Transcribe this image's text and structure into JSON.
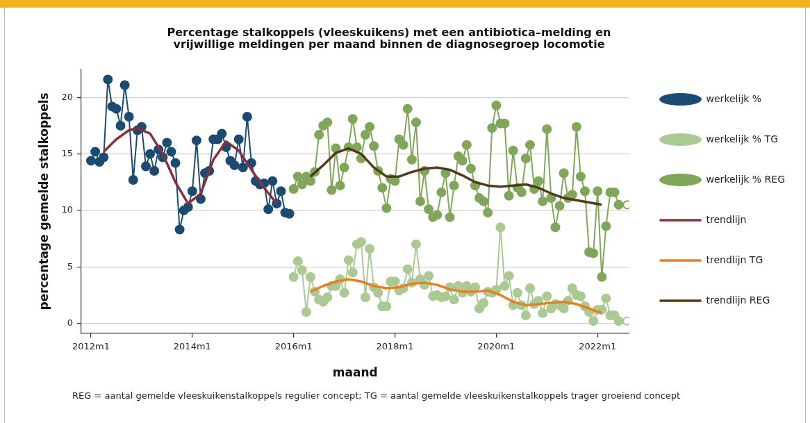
{
  "chart_data": {
    "type": "line",
    "title": "Percentage stalkoppels (vleeskuikens) met een antibiotica–melding en vrijwillige meldingen per maand binnen de diagnosegroep locomotie",
    "xlabel": "maand",
    "ylabel": "percentage gemelde stalkoppels",
    "annotations": [
      "REG = aantal gemelde vleeskuikenstalkoppels regulier concept; TG = aantal gemelde vleeskuikenstalkoppels trager groeiend concept"
    ],
    "xlim": [
      "2011-10-22",
      "2022-08-15"
    ],
    "xticks": [
      {
        "value": "2012-01",
        "label": "2012m1"
      },
      {
        "value": "2014-01",
        "label": "2014m1"
      },
      {
        "value": "2016-01",
        "label": "2016m1"
      },
      {
        "value": "2018-01",
        "label": "2018m1"
      },
      {
        "value": "2020-01",
        "label": "2020m1"
      },
      {
        "value": "2022-01",
        "label": "2022m1"
      }
    ],
    "ylim": [
      -0.9,
      22.5
    ],
    "yticks": [
      0,
      5,
      10,
      15,
      20
    ],
    "grid": "y",
    "legend": "right",
    "series": [
      {
        "name": "werkelijk %",
        "marker": "circle",
        "color": "#1b4a73",
        "x": [
          "2012-01",
          "2012-02",
          "2012-03",
          "2012-04",
          "2012-05",
          "2012-06",
          "2012-07",
          "2012-08",
          "2012-09",
          "2012-10",
          "2012-11",
          "2012-12",
          "2013-01",
          "2013-02",
          "2013-03",
          "2013-04",
          "2013-05",
          "2013-06",
          "2013-07",
          "2013-08",
          "2013-09",
          "2013-10",
          "2013-11",
          "2013-12",
          "2014-01",
          "2014-02",
          "2014-03",
          "2014-04",
          "2014-05",
          "2014-06",
          "2014-07",
          "2014-08",
          "2014-09",
          "2014-10",
          "2014-11",
          "2014-12",
          "2015-01",
          "2015-02",
          "2015-03",
          "2015-04",
          "2015-05",
          "2015-06",
          "2015-07",
          "2015-08",
          "2015-09",
          "2015-10",
          "2015-11",
          "2015-12"
        ],
        "values": [
          14.4,
          15.2,
          14.3,
          14.7,
          21.6,
          19.2,
          19.0,
          17.5,
          21.1,
          18.3,
          12.7,
          17.1,
          17.4,
          13.9,
          15.0,
          13.5,
          15.4,
          14.7,
          16.0,
          15.2,
          14.2,
          8.3,
          10.0,
          10.3,
          11.7,
          16.2,
          11.0,
          13.3,
          13.5,
          16.3,
          16.3,
          16.8,
          15.6,
          14.4,
          14.0,
          16.3,
          13.8,
          18.3,
          14.2,
          12.6,
          12.3,
          12.4,
          10.1,
          12.6,
          10.6,
          11.7,
          9.8,
          9.7
        ]
      },
      {
        "name": "werkelijk % TG",
        "marker": "circle",
        "color": "#abc993",
        "x": [
          "2016-01",
          "2016-02",
          "2016-03",
          "2016-04",
          "2016-05",
          "2016-06",
          "2016-07",
          "2016-08",
          "2016-09",
          "2016-10",
          "2016-11",
          "2016-12",
          "2017-01",
          "2017-02",
          "2017-03",
          "2017-04",
          "2017-05",
          "2017-06",
          "2017-07",
          "2017-08",
          "2017-09",
          "2017-10",
          "2017-11",
          "2017-12",
          "2018-01",
          "2018-02",
          "2018-03",
          "2018-04",
          "2018-05",
          "2018-06",
          "2018-07",
          "2018-08",
          "2018-09",
          "2018-10",
          "2018-11",
          "2018-12",
          "2019-01",
          "2019-02",
          "2019-03",
          "2019-04",
          "2019-05",
          "2019-06",
          "2019-07",
          "2019-08",
          "2019-09",
          "2019-10",
          "2019-11",
          "2019-12",
          "2020-01",
          "2020-02",
          "2020-03",
          "2020-04",
          "2020-05",
          "2020-06",
          "2020-07",
          "2020-08",
          "2020-09",
          "2020-10",
          "2020-11",
          "2020-12",
          "2021-01",
          "2021-02",
          "2021-03",
          "2021-04",
          "2021-05",
          "2021-06",
          "2021-07",
          "2021-08",
          "2021-09",
          "2021-10",
          "2021-11",
          "2021-12",
          "2022-01",
          "2022-02",
          "2022-03",
          "2022-04",
          "2022-05",
          "2022-06"
        ],
        "values": [
          4.1,
          5.5,
          4.7,
          1.0,
          4.1,
          2.8,
          2.1,
          1.9,
          2.3,
          3.3,
          3.3,
          3.9,
          2.7,
          5.6,
          4.5,
          7.0,
          7.2,
          2.3,
          6.6,
          3.2,
          2.7,
          1.5,
          1.5,
          3.7,
          3.7,
          2.9,
          3.1,
          4.8,
          3.6,
          7.0,
          3.9,
          3.4,
          4.2,
          2.4,
          2.5,
          2.3,
          2.4,
          3.2,
          2.1,
          3.3,
          2.7,
          3.3,
          2.8,
          3.2,
          1.3,
          1.8,
          2.8,
          2.7,
          3.0,
          8.5,
          3.3,
          4.2,
          1.6,
          2.7,
          1.6,
          0.7,
          3.1,
          1.7,
          2.0,
          0.9,
          2.4,
          1.3,
          1.7,
          1.6,
          1.3,
          2.0,
          3.1,
          2.5,
          2.4,
          1.5,
          1.0,
          0.2,
          1.2,
          1.2,
          2.2,
          0.7,
          0.7,
          0.2
        ]
      },
      {
        "name": "werkelijk % REG",
        "marker": "circle",
        "color": "#80a65a",
        "x": [
          "2016-01",
          "2016-02",
          "2016-03",
          "2016-04",
          "2016-05",
          "2016-06",
          "2016-07",
          "2016-08",
          "2016-09",
          "2016-10",
          "2016-11",
          "2016-12",
          "2017-01",
          "2017-02",
          "2017-03",
          "2017-04",
          "2017-05",
          "2017-06",
          "2017-07",
          "2017-08",
          "2017-09",
          "2017-10",
          "2017-11",
          "2017-12",
          "2018-01",
          "2018-02",
          "2018-03",
          "2018-04",
          "2018-05",
          "2018-06",
          "2018-07",
          "2018-08",
          "2018-09",
          "2018-10",
          "2018-11",
          "2018-12",
          "2019-01",
          "2019-02",
          "2019-03",
          "2019-04",
          "2019-05",
          "2019-06",
          "2019-07",
          "2019-08",
          "2019-09",
          "2019-10",
          "2019-11",
          "2019-12",
          "2020-01",
          "2020-02",
          "2020-03",
          "2020-04",
          "2020-05",
          "2020-06",
          "2020-07",
          "2020-08",
          "2020-09",
          "2020-10",
          "2020-11",
          "2020-12",
          "2021-01",
          "2021-02",
          "2021-03",
          "2021-04",
          "2021-05",
          "2021-06",
          "2021-07",
          "2021-08",
          "2021-09",
          "2021-10",
          "2021-11",
          "2021-12",
          "2022-01",
          "2022-02",
          "2022-03",
          "2022-04",
          "2022-05",
          "2022-06"
        ],
        "values": [
          11.9,
          13.0,
          12.3,
          13.0,
          12.6,
          13.4,
          16.7,
          17.5,
          17.8,
          11.8,
          15.5,
          12.2,
          13.8,
          15.6,
          18.1,
          15.6,
          14.6,
          16.7,
          17.4,
          15.7,
          13.5,
          12.0,
          10.2,
          12.8,
          12.6,
          16.3,
          15.8,
          19.0,
          14.5,
          17.8,
          10.8,
          13.5,
          10.1,
          9.4,
          9.6,
          11.6,
          13.3,
          9.4,
          12.2,
          14.8,
          14.4,
          15.8,
          13.7,
          12.2,
          11.1,
          10.8,
          9.8,
          17.3,
          19.3,
          17.7,
          17.7,
          11.3,
          15.3,
          12.0,
          11.6,
          14.6,
          15.8,
          11.9,
          12.6,
          10.8,
          17.2,
          11.1,
          8.5,
          10.4,
          13.3,
          11.1,
          11.4,
          17.4,
          13.0,
          11.7,
          6.3,
          6.2,
          11.7,
          4.1,
          8.6,
          11.6,
          11.6,
          10.5
        ]
      },
      {
        "name": "trendlijn",
        "marker": "none",
        "color": "#8a2f3b",
        "x": [
          "2012-04",
          "2012-07",
          "2012-10",
          "2012-12",
          "2013-03",
          "2013-06",
          "2013-09",
          "2013-12",
          "2014-03",
          "2014-06",
          "2014-09",
          "2014-12",
          "2015-03",
          "2015-06",
          "2015-09"
        ],
        "values": [
          15.2,
          16.3,
          17.1,
          17.3,
          16.8,
          15.0,
          12.5,
          10.6,
          11.5,
          14.5,
          16.1,
          15.3,
          13.6,
          12.0,
          10.6
        ]
      },
      {
        "name": "trendlijn TG",
        "marker": "none",
        "color": "#e8801f",
        "x": [
          "2016-05",
          "2016-08",
          "2016-11",
          "2017-02",
          "2017-05",
          "2017-08",
          "2017-11",
          "2018-02",
          "2018-05",
          "2018-08",
          "2018-11",
          "2019-02",
          "2019-05",
          "2019-08",
          "2019-11",
          "2020-02",
          "2020-05",
          "2020-08",
          "2020-11",
          "2021-02",
          "2021-05",
          "2021-08",
          "2021-11",
          "2022-02"
        ],
        "values": [
          2.8,
          3.3,
          3.7,
          3.9,
          3.7,
          3.3,
          3.1,
          3.2,
          3.5,
          3.6,
          3.4,
          3.0,
          2.8,
          2.8,
          2.9,
          2.5,
          1.9,
          1.6,
          1.7,
          1.8,
          1.9,
          1.7,
          1.3,
          0.9
        ]
      },
      {
        "name": "trendlijn REG",
        "marker": "none",
        "color": "#4f3b19",
        "x": [
          "2016-05",
          "2016-08",
          "2016-11",
          "2017-02",
          "2017-05",
          "2017-08",
          "2017-11",
          "2018-02",
          "2018-05",
          "2018-08",
          "2018-11",
          "2019-02",
          "2019-05",
          "2019-08",
          "2019-11",
          "2020-02",
          "2020-05",
          "2020-08",
          "2020-11",
          "2021-02",
          "2021-05",
          "2021-08",
          "2021-11",
          "2022-02"
        ],
        "values": [
          13.0,
          14.0,
          15.1,
          15.5,
          15.0,
          13.8,
          13.0,
          13.0,
          13.4,
          13.7,
          13.8,
          13.6,
          13.1,
          12.5,
          12.2,
          12.1,
          12.2,
          12.3,
          12.0,
          11.5,
          11.1,
          10.9,
          10.7,
          10.5
        ]
      },
      {
        "type": "scatter",
        "marker": "circle",
        "color": "#abc993",
        "x": [
          "2022-08"
        ],
        "values": [
          0.2
        ]
      },
      {
        "type": "scatter",
        "marker": "circle",
        "color": "#80a65a",
        "x": [
          "2022-08"
        ],
        "values": [
          10.5
        ]
      }
    ]
  }
}
